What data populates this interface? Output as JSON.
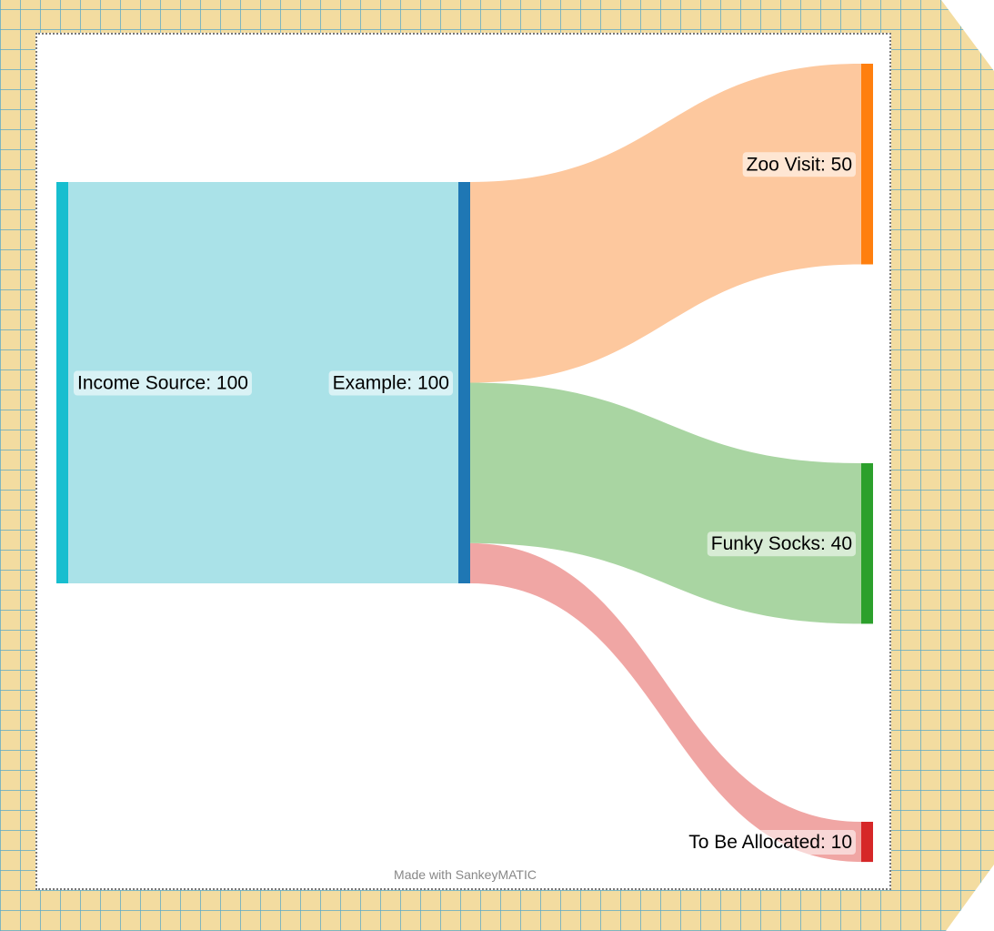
{
  "chart_data": {
    "type": "sankey",
    "nodes": [
      {
        "name": "Income Source",
        "value": 100,
        "color": "#17becf",
        "label": "Income Source: 100"
      },
      {
        "name": "Example",
        "value": 100,
        "color": "#1f77b4",
        "label": "Example: 100"
      },
      {
        "name": "Zoo Visit",
        "value": 50,
        "color": "#ff7f0e",
        "label": "Zoo Visit: 50"
      },
      {
        "name": "Funky Socks",
        "value": 40,
        "color": "#2ca02c",
        "label": "Funky Socks: 40"
      },
      {
        "name": "To Be Allocated",
        "value": 10,
        "color": "#d62728",
        "label": "To Be Allocated: 10"
      }
    ],
    "links": [
      {
        "source": "Income Source",
        "target": "Example",
        "value": 100,
        "color": "#aae2e8"
      },
      {
        "source": "Example",
        "target": "Zoo Visit",
        "value": 50,
        "color": "#fdc89e"
      },
      {
        "source": "Example",
        "target": "Funky Socks",
        "value": 40,
        "color": "#a9d5a2"
      },
      {
        "source": "Example",
        "target": "To Be Allocated",
        "value": 10,
        "color": "#f0a6a4"
      }
    ]
  },
  "credit": "Made with SankeyMATIC"
}
